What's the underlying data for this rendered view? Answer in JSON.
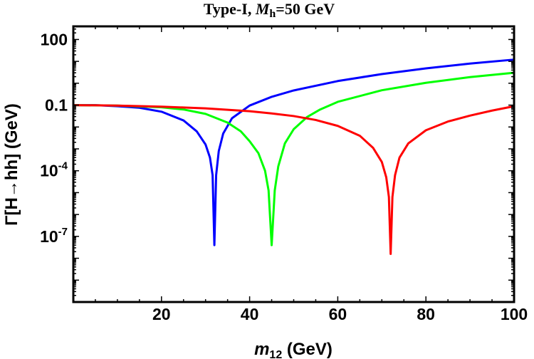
{
  "chart_data": {
    "type": "line",
    "title": {
      "prefix": "Type-I, ",
      "var": "M",
      "var_sub": "h",
      "suffix": "=50 GeV"
    },
    "xlabel": {
      "var": "m",
      "var_sub": "12",
      "suffix": " (GeV)"
    },
    "ylabel": "Γ[H→hh] (GeV)",
    "x_ticks": [
      "20",
      "40",
      "60",
      "80",
      "100"
    ],
    "y_ticks": [
      {
        "base": "100",
        "exp": ""
      },
      {
        "base": "0.1",
        "exp": ""
      },
      {
        "base": "10",
        "exp": "-4"
      },
      {
        "base": "10",
        "exp": "-7"
      }
    ],
    "xlim": [
      0,
      100
    ],
    "ylim_log10": [
      -10,
      2.6
    ],
    "log_scale_y": true,
    "grid": false,
    "series": [
      {
        "color": "#0000ff",
        "x": [
          0.1,
          5,
          10,
          15,
          20,
          25,
          28,
          30,
          31,
          31.6,
          32,
          32.4,
          33,
          34,
          36,
          40,
          45,
          50,
          60,
          70,
          80,
          90,
          100
        ],
        "y_log10": [
          -1.0,
          -1.0,
          -1.05,
          -1.12,
          -1.3,
          -1.7,
          -2.2,
          -2.8,
          -3.4,
          -4.2,
          -7.4,
          -4.2,
          -3.1,
          -2.3,
          -1.6,
          -1.02,
          -0.62,
          -0.33,
          0.1,
          0.42,
          0.68,
          0.9,
          1.08
        ]
      },
      {
        "color": "#00ff00",
        "x": [
          0.1,
          10,
          20,
          25,
          30,
          35,
          38,
          40,
          42,
          43.5,
          44.3,
          45,
          45.7,
          46.5,
          48,
          50,
          53,
          56,
          60,
          70,
          80,
          90,
          100
        ],
        "y_log10": [
          -1.0,
          -1.02,
          -1.1,
          -1.2,
          -1.4,
          -1.8,
          -2.2,
          -2.65,
          -3.2,
          -4.0,
          -4.9,
          -7.4,
          -4.9,
          -3.8,
          -2.75,
          -2.1,
          -1.55,
          -1.2,
          -0.85,
          -0.32,
          0.02,
          0.28,
          0.48
        ]
      },
      {
        "color": "#ff0000",
        "x": [
          0.1,
          10,
          20,
          30,
          40,
          45,
          50,
          55,
          60,
          65,
          68,
          70,
          71,
          71.6,
          72,
          72.4,
          73,
          74,
          76,
          80,
          85,
          90,
          95,
          100
        ],
        "y_log10": [
          -1.0,
          -1.02,
          -1.07,
          -1.15,
          -1.28,
          -1.38,
          -1.5,
          -1.68,
          -1.95,
          -2.4,
          -2.95,
          -3.6,
          -4.3,
          -5.2,
          -7.8,
          -5.2,
          -4.2,
          -3.4,
          -2.75,
          -2.15,
          -1.75,
          -1.48,
          -1.25,
          -1.05
        ]
      }
    ]
  }
}
